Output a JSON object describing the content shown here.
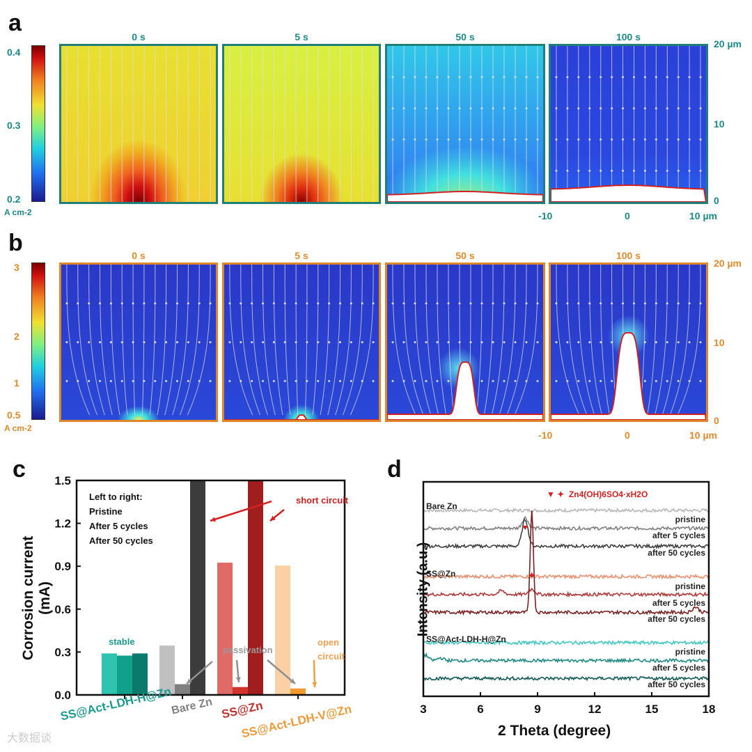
{
  "panels": {
    "a": "a",
    "b": "b",
    "c": "c",
    "d": "d"
  },
  "panel_a": {
    "times": [
      "0 s",
      "5 s",
      "50 s",
      "100 s"
    ],
    "colorbar_ticks": [
      "0.4",
      "0.3",
      "0.2"
    ],
    "colorbar_unit": "A cm-2",
    "y_ticks": [
      "20 µm",
      "10",
      "0"
    ],
    "x_ticks": [
      "-10",
      "0",
      "10 µm"
    ],
    "accent": "#1b8a86"
  },
  "panel_b": {
    "times": [
      "0 s",
      "5 s",
      "50 s",
      "100 s"
    ],
    "colorbar_ticks": [
      "3",
      "2",
      "1",
      "0.5"
    ],
    "colorbar_unit": "A cm-2",
    "y_ticks": [
      "20 µm",
      "10",
      "0"
    ],
    "x_ticks": [
      "-10",
      "0",
      "10 µm"
    ],
    "accent": "#e0862a"
  },
  "chart_data": [
    {
      "type": "bar",
      "ylabel": "Corrosion current (mA)",
      "xlabel": "",
      "ylim": [
        0,
        1.5
      ],
      "yticks": [
        "0.0",
        "0.3",
        "0.6",
        "0.9",
        "1.2",
        "1.5"
      ],
      "categories": [
        "SS@Act-LDH-H@Zn",
        "Bare Zn",
        "SS@Zn",
        "SS@Act-LDH-V@Zn"
      ],
      "category_colors": [
        "#1b9a8e",
        "#7a7a7a",
        "#c0302c",
        "#ee9a3a"
      ],
      "series": [
        {
          "name": "Pristine",
          "values": [
            0.29,
            0.345,
            0.925,
            0.905
          ],
          "colors": [
            "#2ec4b0",
            "#c0c0c0",
            "#e06a66",
            "#fbd0a4"
          ]
        },
        {
          "name": "After 5 cycles",
          "values": [
            0.275,
            0.075,
            0.055,
            0.045
          ],
          "colors": [
            "#10a08c",
            "#808080",
            "#d0342a",
            "#f09a30"
          ]
        },
        {
          "name": "After 50 cycles",
          "values": [
            0.29,
            1.5,
            1.5,
            0
          ],
          "colors": [
            "#0b7a6c",
            "#3c3c3c",
            "#a01e1e",
            "#e08020"
          ]
        }
      ],
      "legend_text": [
        "Left to right:",
        "Pristine",
        "After 5 cycles",
        "After 50 cycles"
      ],
      "annotations": {
        "stable": "stable",
        "short_circuit": "short circuit",
        "passivation": "passivation",
        "open_circuit_1": "open",
        "open_circuit_2": "circuit"
      }
    },
    {
      "type": "line",
      "xlabel": "2 Theta (degree)",
      "ylabel": "Intensity (a.u.)",
      "xlim": [
        3,
        18
      ],
      "xticks": [
        "3",
        "6",
        "9",
        "12",
        "15",
        "18"
      ],
      "legend": "Zn4(OH)6SO4·xH2O",
      "legend_symbols": "▼ ✦",
      "groups": [
        {
          "name": "Bare Zn",
          "series": [
            {
              "name": "pristine",
              "color": "#b8b8b8",
              "offset": 8.6,
              "peaks": []
            },
            {
              "name": "after 5 cycles",
              "color": "#808080",
              "offset": 7.6,
              "peaks": [
                [
                  8.35,
                  0.6
                ]
              ]
            },
            {
              "name": "after 50 cycles",
              "color": "#404040",
              "offset": 6.6,
              "peaks": [
                [
                  8.35,
                  1.5
                ]
              ]
            }
          ]
        },
        {
          "name": "SS@Zn",
          "series": [
            {
              "name": "pristine",
              "color": "#e89070",
              "offset": 4.9,
              "peaks": []
            },
            {
              "name": "after 5 cycles",
              "color": "#b03a3a",
              "offset": 3.9,
              "peaks": [
                [
                  8.7,
                  0.3
                ],
                [
                  7.1,
                  0.2
                ]
              ]
            },
            {
              "name": "after 50 cycles",
              "color": "#7a2020",
              "offset": 2.9,
              "peaks": [
                [
                  8.7,
                  5.7
                ],
                [
                  17.3,
                  0.3
                ]
              ]
            }
          ]
        },
        {
          "name": "SS@Act-LDH-H@Zn",
          "series": [
            {
              "name": "pristine",
              "color": "#40c8c0",
              "offset": 1.2,
              "peaks": []
            },
            {
              "name": "after 5 cycles",
              "color": "#1f8a84",
              "offset": 0.2,
              "peaks": [
                [
                  3.1,
                  0.3
                ],
                [
                  3.9,
                  0.15
                ]
              ]
            },
            {
              "name": "after 50 cycles",
              "color": "#145a58",
              "offset": -0.8,
              "peaks": []
            }
          ]
        }
      ]
    }
  ],
  "watermark": "大数据谈"
}
